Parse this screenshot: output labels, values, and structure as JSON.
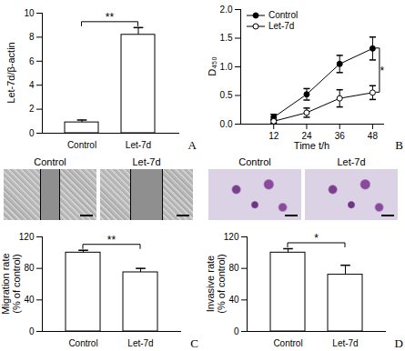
{
  "chart_data": [
    {
      "type": "bar",
      "panel": "A",
      "categories": [
        "Control",
        "Let-7d"
      ],
      "values": [
        0.9,
        8.2
      ],
      "errors": [
        0.2,
        0.6
      ],
      "color": "#ffffff",
      "y_label": "Let-7d/β-actin",
      "ylim": [
        0,
        10
      ],
      "yticks": [
        0,
        2,
        4,
        6,
        8,
        10
      ],
      "significance": "**"
    },
    {
      "type": "line",
      "panel": "B",
      "x": [
        12,
        24,
        36,
        48
      ],
      "series": [
        {
          "name": "Control",
          "color": "#000000",
          "marker": "filled_circle",
          "values": [
            0.12,
            0.52,
            1.05,
            1.32
          ],
          "errors": [
            0.05,
            0.1,
            0.15,
            0.2
          ]
        },
        {
          "name": "Let-7d",
          "color": "#000000",
          "marker": "open_circle",
          "values": [
            0.05,
            0.2,
            0.45,
            0.55
          ],
          "errors": [
            0.03,
            0.08,
            0.15,
            0.12
          ]
        }
      ],
      "x_label": "Time t/h",
      "y_label": "D₄₅₀",
      "xlim": [
        0,
        52
      ],
      "xticks": [
        12,
        24,
        36,
        48
      ],
      "ylim": [
        0,
        2
      ],
      "yticks": [
        {
          "value": 0,
          "label": "0.0"
        },
        {
          "value": 0.5,
          "label": "0.5"
        },
        {
          "value": 1,
          "label": "1.0"
        },
        {
          "value": 1.5,
          "label": "1.5"
        },
        {
          "value": 2,
          "label": "2.0"
        }
      ],
      "legend": "top-left",
      "significance": "*"
    },
    {
      "type": "bar",
      "panel": "C",
      "image_labels": [
        "Control",
        "Let-7d"
      ],
      "categories": [
        "Control",
        "Let-7d"
      ],
      "values": [
        100,
        75
      ],
      "errors": [
        3,
        5
      ],
      "color": "#ffffff",
      "y_label": "Migration rate\n(% of control)",
      "ylim": [
        0,
        120
      ],
      "yticks": [
        0,
        40,
        80,
        120
      ],
      "significance": "**"
    },
    {
      "type": "bar",
      "panel": "D",
      "image_labels": [
        "Control",
        "Let-7d"
      ],
      "categories": [
        "Control",
        "Let-7d"
      ],
      "values": [
        100,
        72
      ],
      "errors": [
        5,
        12
      ],
      "color": "#ffffff",
      "y_label": "Invasive rate\n(% of control)",
      "ylim": [
        0,
        120
      ],
      "yticks": [
        0,
        40,
        80,
        120
      ],
      "significance": "*"
    }
  ]
}
